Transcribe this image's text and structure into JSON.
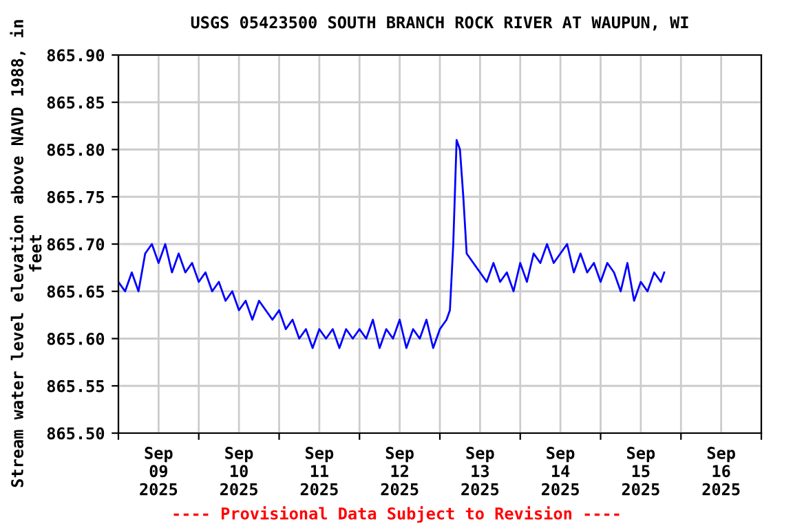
{
  "chart_data": {
    "type": "line",
    "title": "USGS 05423500 SOUTH BRANCH ROCK RIVER AT WAUPUN, WI",
    "ylabel": "Stream water level elevation above NAVD 1988, in feet",
    "annotations": [
      "---- Provisional Data Subject to Revision ----"
    ],
    "series": [
      {
        "color": "#0000ff",
        "x": [
          "2025-09-09T00:00",
          "2025-09-09T02:00",
          "2025-09-09T04:00",
          "2025-09-09T06:00",
          "2025-09-09T08:00",
          "2025-09-09T10:00",
          "2025-09-09T12:00",
          "2025-09-09T14:00",
          "2025-09-09T16:00",
          "2025-09-09T18:00",
          "2025-09-09T20:00",
          "2025-09-09T22:00",
          "2025-09-10T00:00",
          "2025-09-10T02:00",
          "2025-09-10T04:00",
          "2025-09-10T06:00",
          "2025-09-10T08:00",
          "2025-09-10T10:00",
          "2025-09-10T12:00",
          "2025-09-10T14:00",
          "2025-09-10T16:00",
          "2025-09-10T18:00",
          "2025-09-10T20:00",
          "2025-09-10T22:00",
          "2025-09-11T00:00",
          "2025-09-11T02:00",
          "2025-09-11T04:00",
          "2025-09-11T06:00",
          "2025-09-11T08:00",
          "2025-09-11T10:00",
          "2025-09-11T12:00",
          "2025-09-11T14:00",
          "2025-09-11T16:00",
          "2025-09-11T18:00",
          "2025-09-11T20:00",
          "2025-09-11T22:00",
          "2025-09-12T00:00",
          "2025-09-12T02:00",
          "2025-09-12T04:00",
          "2025-09-12T06:00",
          "2025-09-12T08:00",
          "2025-09-12T10:00",
          "2025-09-12T12:00",
          "2025-09-12T14:00",
          "2025-09-12T16:00",
          "2025-09-12T18:00",
          "2025-09-12T20:00",
          "2025-09-12T22:00",
          "2025-09-13T00:00",
          "2025-09-13T02:00",
          "2025-09-13T03:00",
          "2025-09-13T04:00",
          "2025-09-13T05:00",
          "2025-09-13T06:00",
          "2025-09-13T07:00",
          "2025-09-13T08:00",
          "2025-09-13T10:00",
          "2025-09-13T12:00",
          "2025-09-13T14:00",
          "2025-09-13T16:00",
          "2025-09-13T18:00",
          "2025-09-13T20:00",
          "2025-09-13T22:00",
          "2025-09-14T00:00",
          "2025-09-14T02:00",
          "2025-09-14T04:00",
          "2025-09-14T06:00",
          "2025-09-14T08:00",
          "2025-09-14T10:00",
          "2025-09-14T12:00",
          "2025-09-14T14:00",
          "2025-09-14T16:00",
          "2025-09-14T18:00",
          "2025-09-14T20:00",
          "2025-09-14T22:00",
          "2025-09-15T00:00",
          "2025-09-15T02:00",
          "2025-09-15T04:00",
          "2025-09-15T06:00",
          "2025-09-15T08:00",
          "2025-09-15T10:00",
          "2025-09-15T12:00",
          "2025-09-15T14:00",
          "2025-09-15T16:00",
          "2025-09-15T18:00",
          "2025-09-15T19:00"
        ],
        "values": [
          865.66,
          865.65,
          865.67,
          865.65,
          865.69,
          865.7,
          865.68,
          865.7,
          865.67,
          865.69,
          865.67,
          865.68,
          865.66,
          865.67,
          865.65,
          865.66,
          865.64,
          865.65,
          865.63,
          865.64,
          865.62,
          865.64,
          865.63,
          865.62,
          865.63,
          865.61,
          865.62,
          865.6,
          865.61,
          865.59,
          865.61,
          865.6,
          865.61,
          865.59,
          865.61,
          865.6,
          865.61,
          865.6,
          865.62,
          865.59,
          865.61,
          865.6,
          865.62,
          865.59,
          865.61,
          865.6,
          865.62,
          865.59,
          865.61,
          865.62,
          865.63,
          865.7,
          865.81,
          865.8,
          865.75,
          865.69,
          865.68,
          865.67,
          865.66,
          865.68,
          865.66,
          865.67,
          865.65,
          865.68,
          865.66,
          865.69,
          865.68,
          865.7,
          865.68,
          865.69,
          865.7,
          865.67,
          865.69,
          865.67,
          865.68,
          865.66,
          865.68,
          865.67,
          865.65,
          865.68,
          865.64,
          865.66,
          865.65,
          865.67,
          865.66,
          865.67
        ]
      }
    ],
    "xlim": [
      "2025-09-09T00:00",
      "2025-09-17T00:00"
    ],
    "xticks": [
      {
        "value": "2025-09-09T00:00",
        "label": null
      },
      {
        "value": "2025-09-09T12:00",
        "label": "Sep\n09\n2025"
      },
      {
        "value": "2025-09-10T00:00",
        "label": null
      },
      {
        "value": "2025-09-10T12:00",
        "label": "Sep\n10\n2025"
      },
      {
        "value": "2025-09-11T00:00",
        "label": null
      },
      {
        "value": "2025-09-11T12:00",
        "label": "Sep\n11\n2025"
      },
      {
        "value": "2025-09-12T00:00",
        "label": null
      },
      {
        "value": "2025-09-12T12:00",
        "label": "Sep\n12\n2025"
      },
      {
        "value": "2025-09-13T00:00",
        "label": null
      },
      {
        "value": "2025-09-13T12:00",
        "label": "Sep\n13\n2025"
      },
      {
        "value": "2025-09-14T00:00",
        "label": null
      },
      {
        "value": "2025-09-14T12:00",
        "label": "Sep\n14\n2025"
      },
      {
        "value": "2025-09-15T00:00",
        "label": null
      },
      {
        "value": "2025-09-15T12:00",
        "label": "Sep\n15\n2025"
      },
      {
        "value": "2025-09-16T00:00",
        "label": null
      },
      {
        "value": "2025-09-16T12:00",
        "label": "Sep\n16\n2025"
      },
      {
        "value": "2025-09-17T00:00",
        "label": null
      }
    ],
    "ylim": [
      865.5,
      865.9
    ],
    "yticks": [
      {
        "value": 865.5,
        "label": "865.50"
      },
      {
        "value": 865.55,
        "label": "865.55"
      },
      {
        "value": 865.6,
        "label": "865.60"
      },
      {
        "value": 865.65,
        "label": "865.65"
      },
      {
        "value": 865.7,
        "label": "865.70"
      },
      {
        "value": 865.75,
        "label": "865.75"
      },
      {
        "value": 865.8,
        "label": "865.80"
      },
      {
        "value": 865.85,
        "label": "865.85"
      },
      {
        "value": 865.9,
        "label": "865.90"
      }
    ],
    "grid": true,
    "line_style": "solid"
  }
}
